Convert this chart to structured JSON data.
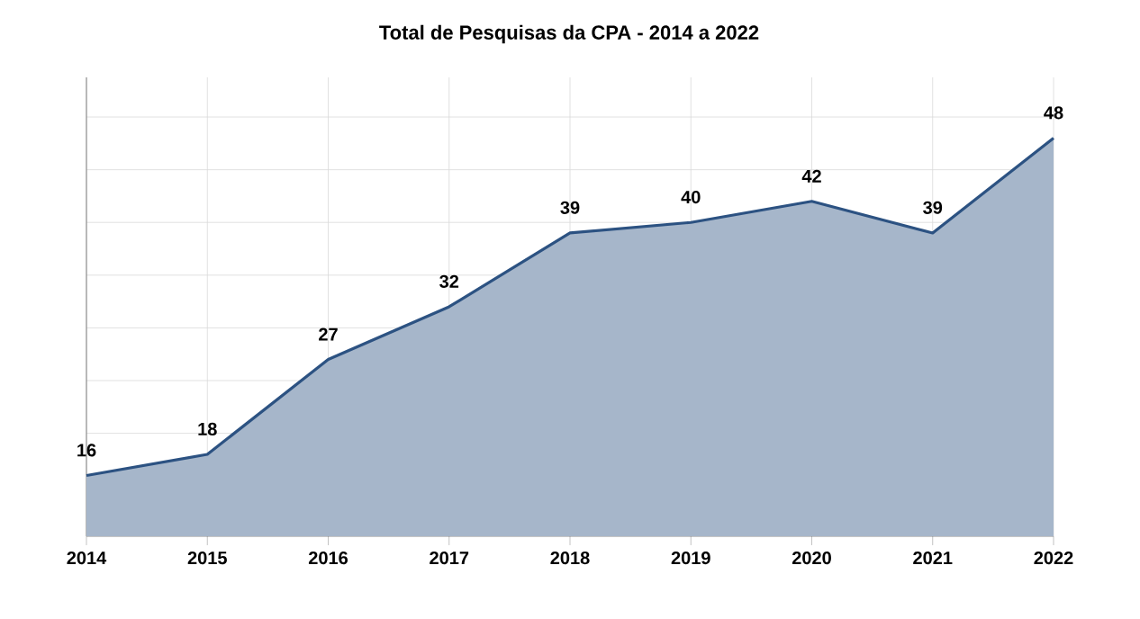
{
  "chart_data": {
    "type": "area",
    "title": "Total de Pesquisas da CPA - 2014 a 2022",
    "categories": [
      "2014",
      "2015",
      "2016",
      "2017",
      "2018",
      "2019",
      "2020",
      "2021",
      "2022"
    ],
    "series": [
      {
        "color": "#2c5282",
        "values": [
          16,
          18,
          27,
          32,
          39,
          40,
          42,
          39,
          48
        ]
      }
    ],
    "grid": true,
    "tick_labels": "x",
    "data_labels": true
  }
}
